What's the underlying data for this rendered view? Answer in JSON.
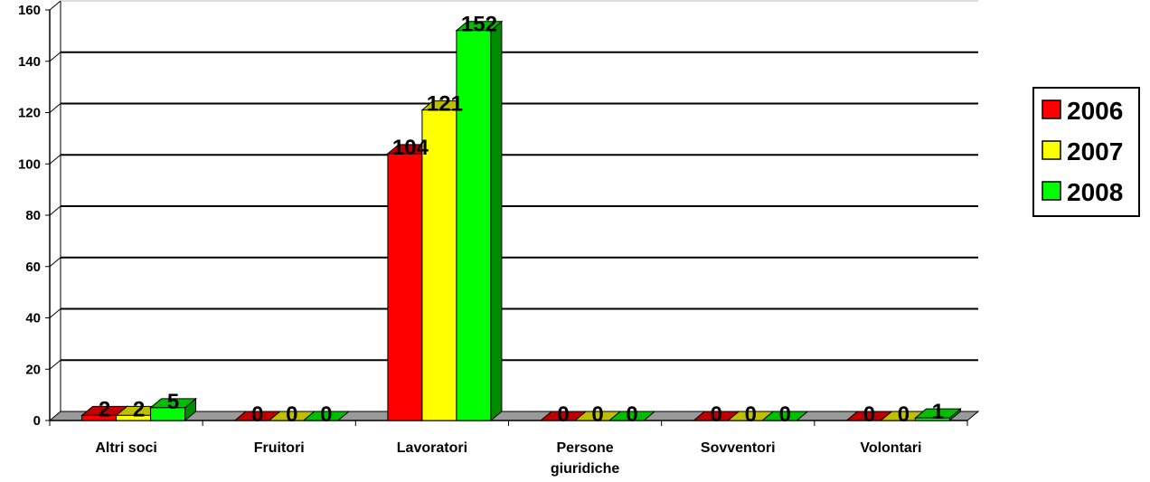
{
  "chart_data": {
    "type": "bar",
    "title": "",
    "xlabel": "",
    "ylabel": "",
    "ylim": [
      0,
      160
    ],
    "yticks": [
      0,
      20,
      40,
      60,
      80,
      100,
      120,
      140,
      160
    ],
    "grid": true,
    "legend_position": "right",
    "three_d": true,
    "categories": [
      [
        "Altri soci"
      ],
      [
        "Fruitori"
      ],
      [
        "Lavoratori"
      ],
      [
        "Persone",
        "giuridiche"
      ],
      [
        "Sovventori"
      ],
      [
        "Volontari"
      ]
    ],
    "series": [
      {
        "name": "2006",
        "color": "#ff0000",
        "values": [
          2,
          0,
          104,
          0,
          0,
          0
        ]
      },
      {
        "name": "2007",
        "color": "#ffff00",
        "values": [
          2,
          0,
          121,
          0,
          0,
          0
        ]
      },
      {
        "name": "2008",
        "color": "#00ff00",
        "values": [
          5,
          0,
          152,
          0,
          0,
          1
        ]
      }
    ]
  }
}
